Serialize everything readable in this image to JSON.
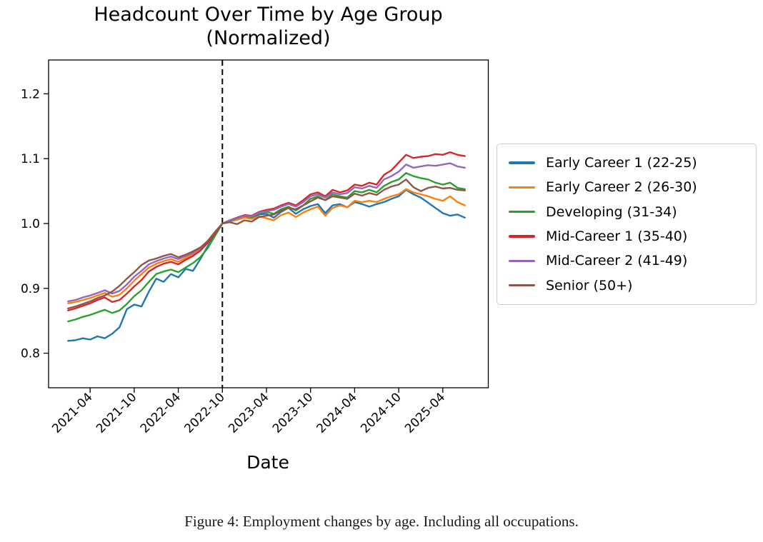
{
  "title": {
    "line1": "Headcount Over Time by Age Group",
    "line2": "(Normalized)"
  },
  "caption": "Figure 4: Employment changes by age. Including all occupations.",
  "chart_data": {
    "type": "line",
    "title": "Headcount Over Time by Age Group (Normalized)",
    "xlabel": "Date",
    "ylabel": "",
    "grid": false,
    "legend_position": "right of axes",
    "ylim": [
      0.747,
      1.252
    ],
    "y_ticks": [
      0.8,
      0.9,
      1.0,
      1.1,
      1.2
    ],
    "x_tick_labels": [
      "2021-04",
      "2021-10",
      "2022-04",
      "2022-10",
      "2023-04",
      "2023-10",
      "2024-04",
      "2024-10",
      "2025-04"
    ],
    "vline": {
      "x": "2022-10",
      "style": "dashed",
      "color": "#000000",
      "meaning": "normalization date (all series = 1.0)"
    },
    "x": [
      "2021-01",
      "2021-02",
      "2021-03",
      "2021-04",
      "2021-05",
      "2021-06",
      "2021-07",
      "2021-08",
      "2021-09",
      "2021-10",
      "2021-11",
      "2021-12",
      "2022-01",
      "2022-02",
      "2022-03",
      "2022-04",
      "2022-05",
      "2022-06",
      "2022-07",
      "2022-08",
      "2022-09",
      "2022-10",
      "2022-11",
      "2022-12",
      "2023-01",
      "2023-02",
      "2023-03",
      "2023-04",
      "2023-05",
      "2023-06",
      "2023-07",
      "2023-08",
      "2023-09",
      "2023-10",
      "2023-11",
      "2023-12",
      "2024-01",
      "2024-02",
      "2024-03",
      "2024-04",
      "2024-05",
      "2024-06",
      "2024-07",
      "2024-08",
      "2024-09",
      "2024-10",
      "2024-11",
      "2024-12",
      "2025-01",
      "2025-02",
      "2025-03",
      "2025-04",
      "2025-05",
      "2025-06",
      "2025-07"
    ],
    "series": [
      {
        "name": "Early Career 1 (22-25)",
        "color": "#1f77b4",
        "values": [
          0.819,
          0.82,
          0.823,
          0.821,
          0.826,
          0.823,
          0.83,
          0.84,
          0.868,
          0.875,
          0.872,
          0.895,
          0.915,
          0.91,
          0.922,
          0.917,
          0.93,
          0.927,
          0.945,
          0.965,
          0.982,
          1.0,
          1.003,
          1.006,
          1.01,
          1.008,
          1.014,
          1.015,
          1.009,
          1.018,
          1.024,
          1.015,
          1.022,
          1.027,
          1.03,
          1.016,
          1.028,
          1.03,
          1.025,
          1.033,
          1.03,
          1.026,
          1.03,
          1.033,
          1.038,
          1.042,
          1.052,
          1.045,
          1.04,
          1.032,
          1.024,
          1.016,
          1.012,
          1.014,
          1.009
        ]
      },
      {
        "name": "Early Career 2 (26-30)",
        "color": "#ff7f0e",
        "values": [
          0.877,
          0.879,
          0.882,
          0.885,
          0.889,
          0.893,
          0.887,
          0.89,
          0.9,
          0.912,
          0.922,
          0.932,
          0.938,
          0.942,
          0.945,
          0.941,
          0.947,
          0.953,
          0.96,
          0.972,
          0.986,
          1.0,
          1.003,
          1.006,
          1.009,
          1.007,
          1.011,
          1.008,
          1.005,
          1.013,
          1.017,
          1.01,
          1.017,
          1.022,
          1.026,
          1.012,
          1.024,
          1.028,
          1.025,
          1.035,
          1.033,
          1.035,
          1.033,
          1.038,
          1.042,
          1.045,
          1.053,
          1.048,
          1.045,
          1.042,
          1.038,
          1.035,
          1.042,
          1.033,
          1.028
        ]
      },
      {
        "name": "Developing (31-34)",
        "color": "#2ca02c",
        "values": [
          0.849,
          0.852,
          0.856,
          0.859,
          0.863,
          0.867,
          0.862,
          0.866,
          0.876,
          0.888,
          0.897,
          0.91,
          0.922,
          0.926,
          0.929,
          0.925,
          0.932,
          0.939,
          0.948,
          0.962,
          0.981,
          1.0,
          1.004,
          1.008,
          1.012,
          1.01,
          1.016,
          1.018,
          1.015,
          1.022,
          1.026,
          1.02,
          1.028,
          1.038,
          1.042,
          1.036,
          1.045,
          1.042,
          1.04,
          1.05,
          1.048,
          1.052,
          1.048,
          1.058,
          1.064,
          1.068,
          1.078,
          1.073,
          1.07,
          1.068,
          1.063,
          1.06,
          1.063,
          1.055,
          1.053
        ]
      },
      {
        "name": "Mid-Career 1 (35-40)",
        "color": "#d62728",
        "values": [
          0.866,
          0.869,
          0.873,
          0.877,
          0.882,
          0.886,
          0.879,
          0.882,
          0.892,
          0.903,
          0.913,
          0.926,
          0.933,
          0.938,
          0.941,
          0.937,
          0.944,
          0.95,
          0.958,
          0.97,
          0.985,
          1.0,
          1.005,
          1.009,
          1.013,
          1.012,
          1.018,
          1.021,
          1.023,
          1.028,
          1.032,
          1.028,
          1.036,
          1.045,
          1.048,
          1.042,
          1.052,
          1.048,
          1.051,
          1.06,
          1.058,
          1.063,
          1.06,
          1.075,
          1.082,
          1.094,
          1.106,
          1.101,
          1.103,
          1.104,
          1.107,
          1.106,
          1.11,
          1.106,
          1.104
        ]
      },
      {
        "name": "Mid-Career 2 (41-49)",
        "color": "#9467bd",
        "values": [
          0.88,
          0.882,
          0.886,
          0.889,
          0.893,
          0.897,
          0.892,
          0.896,
          0.906,
          0.918,
          0.927,
          0.937,
          0.942,
          0.946,
          0.949,
          0.945,
          0.95,
          0.955,
          0.962,
          0.973,
          0.987,
          1.0,
          1.005,
          1.008,
          1.012,
          1.011,
          1.017,
          1.019,
          1.021,
          1.026,
          1.03,
          1.026,
          1.033,
          1.042,
          1.045,
          1.04,
          1.048,
          1.045,
          1.047,
          1.056,
          1.054,
          1.058,
          1.055,
          1.068,
          1.073,
          1.08,
          1.091,
          1.086,
          1.088,
          1.09,
          1.089,
          1.091,
          1.093,
          1.088,
          1.086
        ]
      },
      {
        "name": "Senior (50+)",
        "color": "#8c564b",
        "values": [
          0.869,
          0.872,
          0.876,
          0.88,
          0.885,
          0.889,
          0.895,
          0.904,
          0.915,
          0.925,
          0.936,
          0.943,
          0.946,
          0.95,
          0.953,
          0.948,
          0.952,
          0.957,
          0.963,
          0.973,
          0.987,
          1.0,
          1.002,
          0.999,
          1.005,
          1.003,
          1.01,
          1.012,
          1.014,
          1.02,
          1.024,
          1.022,
          1.028,
          1.034,
          1.04,
          1.036,
          1.042,
          1.04,
          1.038,
          1.046,
          1.043,
          1.047,
          1.044,
          1.052,
          1.057,
          1.06,
          1.068,
          1.056,
          1.05,
          1.055,
          1.057,
          1.054,
          1.055,
          1.052,
          1.051
        ]
      }
    ]
  }
}
